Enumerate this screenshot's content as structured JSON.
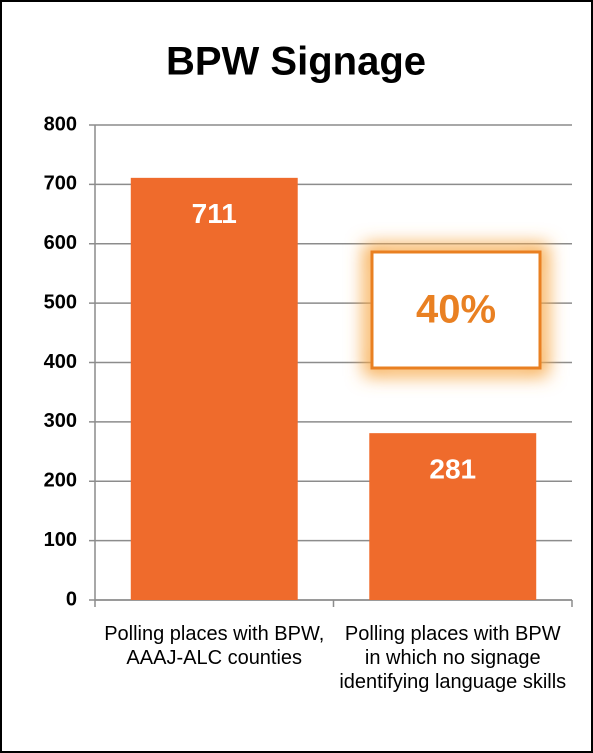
{
  "chart_data": {
    "type": "bar",
    "title": "BPW Signage",
    "categories": [
      "Polling places with BPW, AAAJ-ALC counties",
      "Polling places with BPW in which no signage identifying language skills"
    ],
    "values": [
      711,
      281
    ],
    "color": "#ef6b2c",
    "ylim": [
      0,
      800
    ],
    "yticks": [
      0,
      100,
      200,
      300,
      400,
      500,
      600,
      700,
      800
    ],
    "grid": true,
    "annotations": [
      "40%"
    ]
  }
}
